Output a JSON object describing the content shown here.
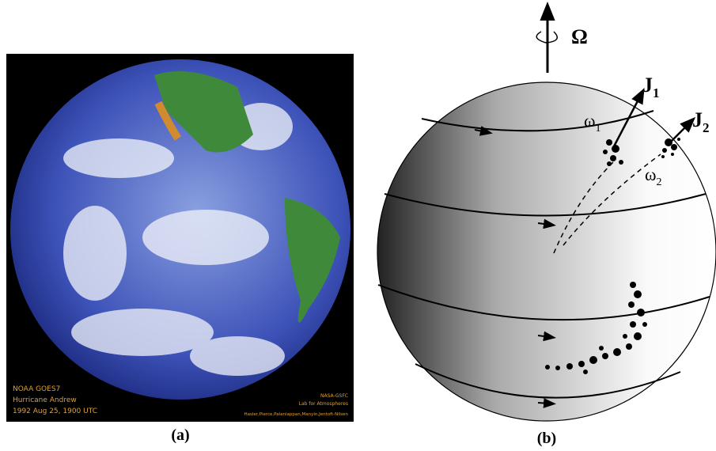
{
  "panel_a": {
    "caption": "(a)",
    "overlay_left": [
      "NOAA GOES7",
      "Hurricane Andrew",
      "1992 Aug 25, 1900 UTC"
    ],
    "overlay_right": [
      "NASA-GSFC",
      "Lab for Atmospheres",
      "Hasler,Pierce,Palaniappan,Manyin,Jentoft-Nilsen"
    ]
  },
  "panel_b": {
    "caption": "(b)",
    "rotation_label": "Ω",
    "labels": [
      {
        "symbol": "J",
        "subscript": "1"
      },
      {
        "symbol": "J",
        "subscript": "2"
      },
      {
        "symbol": "ω",
        "subscript": "1"
      },
      {
        "symbol": "ω",
        "subscript": "2"
      }
    ]
  }
}
